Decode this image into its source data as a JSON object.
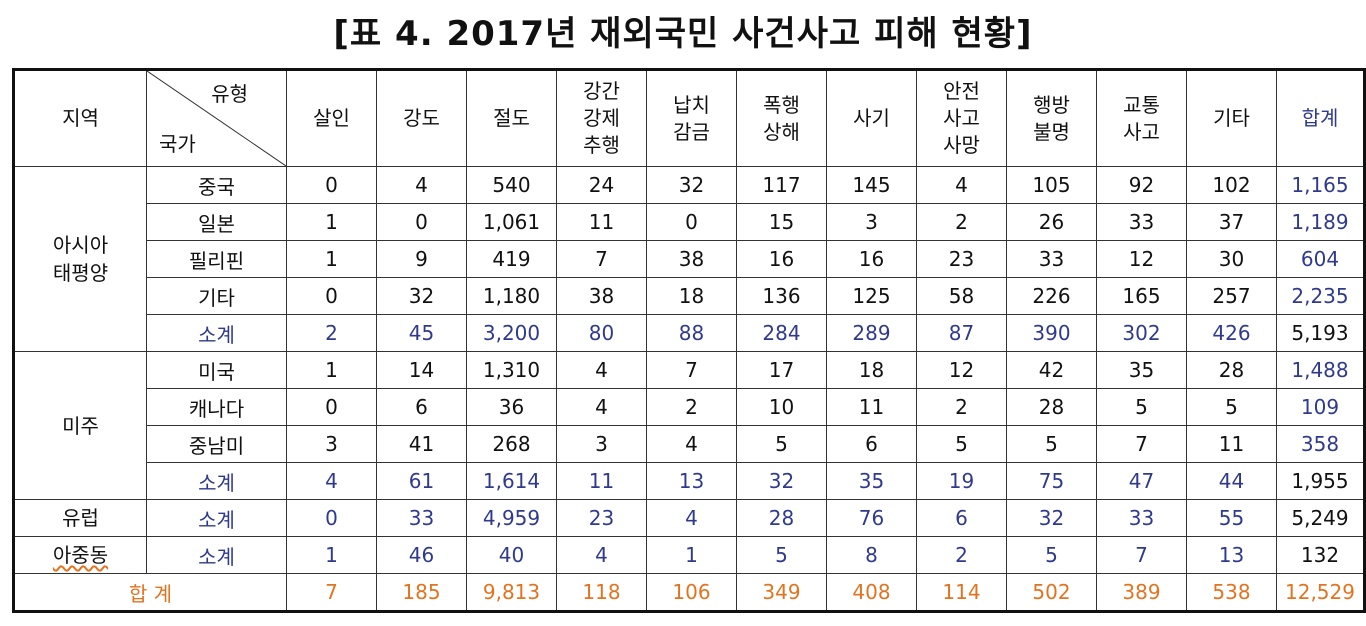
{
  "title": "[표 4. 2017년 재외국민 사건사고 피해 현황]",
  "header": {
    "region": "지역",
    "type": "유형",
    "country": "국가",
    "columns": [
      [
        "살인"
      ],
      [
        "강도"
      ],
      [
        "절도"
      ],
      [
        "강간",
        "강제",
        "추행"
      ],
      [
        "납치",
        "감금"
      ],
      [
        "폭행",
        "상해"
      ],
      [
        "사기"
      ],
      [
        "안전",
        "사고",
        "사망"
      ],
      [
        "행방",
        "불명"
      ],
      [
        "교통",
        "사고"
      ],
      [
        "기타"
      ],
      [
        "합계"
      ]
    ]
  },
  "regions": [
    {
      "name": [
        "아시아",
        "태평양"
      ],
      "rows": [
        {
          "label": "중국",
          "values": [
            "0",
            "4",
            "540",
            "24",
            "32",
            "117",
            "145",
            "4",
            "105",
            "92",
            "102",
            "1,165"
          ]
        },
        {
          "label": "일본",
          "values": [
            "1",
            "0",
            "1,061",
            "11",
            "0",
            "15",
            "3",
            "2",
            "26",
            "33",
            "37",
            "1,189"
          ]
        },
        {
          "label": "필리핀",
          "values": [
            "1",
            "9",
            "419",
            "7",
            "38",
            "16",
            "16",
            "23",
            "33",
            "12",
            "30",
            "604"
          ]
        },
        {
          "label": "기타",
          "values": [
            "0",
            "32",
            "1,180",
            "38",
            "18",
            "136",
            "125",
            "58",
            "226",
            "165",
            "257",
            "2,235"
          ]
        },
        {
          "label": "소계",
          "subtotal": true,
          "values": [
            "2",
            "45",
            "3,200",
            "80",
            "88",
            "284",
            "289",
            "87",
            "390",
            "302",
            "426",
            "5,193"
          ]
        }
      ]
    },
    {
      "name": [
        "미주"
      ],
      "rows": [
        {
          "label": "미국",
          "values": [
            "1",
            "14",
            "1,310",
            "4",
            "7",
            "17",
            "18",
            "12",
            "42",
            "35",
            "28",
            "1,488"
          ]
        },
        {
          "label": "캐나다",
          "values": [
            "0",
            "6",
            "36",
            "4",
            "2",
            "10",
            "11",
            "2",
            "28",
            "5",
            "5",
            "109"
          ]
        },
        {
          "label": "중남미",
          "values": [
            "3",
            "41",
            "268",
            "3",
            "4",
            "5",
            "6",
            "5",
            "5",
            "7",
            "11",
            "358"
          ]
        },
        {
          "label": "소계",
          "subtotal": true,
          "values": [
            "4",
            "61",
            "1,614",
            "11",
            "13",
            "32",
            "35",
            "19",
            "75",
            "47",
            "44",
            "1,955"
          ]
        }
      ]
    },
    {
      "name": [
        "유럽"
      ],
      "rows": [
        {
          "label": "소계",
          "subtotal": true,
          "values": [
            "0",
            "33",
            "4,959",
            "23",
            "4",
            "28",
            "76",
            "6",
            "32",
            "33",
            "55",
            "5,249"
          ]
        }
      ]
    },
    {
      "name": [
        "아중동"
      ],
      "squiggle": true,
      "rows": [
        {
          "label": "소계",
          "subtotal": true,
          "values": [
            "1",
            "46",
            "40",
            "4",
            "1",
            "5",
            "8",
            "2",
            "5",
            "7",
            "13",
            "132"
          ]
        }
      ]
    }
  ],
  "total": {
    "label": "합 계",
    "values": [
      "7",
      "185",
      "9,813",
      "118",
      "106",
      "349",
      "408",
      "114",
      "502",
      "389",
      "538",
      "12,529"
    ]
  },
  "colors": {
    "blue": "#2f3a8f",
    "orange": "#e2731f"
  }
}
